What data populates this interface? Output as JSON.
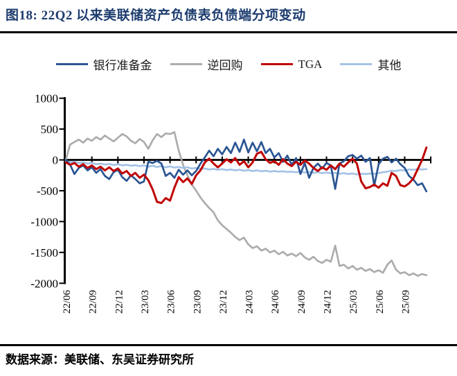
{
  "chart_data": {
    "type": "line",
    "title": "图18:  22Q2 以来美联储资产负债表负债端分项变动",
    "y_ticks": [
      1000,
      500,
      0,
      -500,
      -1000,
      -1500,
      -2000
    ],
    "ylim": [
      -2000,
      1000
    ],
    "x_tick_labels": [
      "22/06",
      "22/09",
      "22/12",
      "23/03",
      "23/06",
      "23/09",
      "23/12",
      "24/03",
      "24/06",
      "24/09",
      "24/12",
      "25/03",
      "25/06",
      "25/09"
    ],
    "x_start": "22/06",
    "samples_per_month": 2,
    "grid": false,
    "legend_position": "top",
    "series": [
      {
        "key": "reserves",
        "name": "银行准备金",
        "color": "#2a5592",
        "values": [
          0,
          -80,
          -230,
          -130,
          -90,
          -170,
          -120,
          -210,
          -150,
          -260,
          -310,
          -200,
          -160,
          -280,
          -340,
          -250,
          -310,
          -380,
          -350,
          -30,
          -50,
          -15,
          -60,
          -260,
          -210,
          -290,
          -160,
          -240,
          -170,
          -250,
          -180,
          -60,
          40,
          150,
          60,
          180,
          90,
          210,
          110,
          280,
          130,
          330,
          120,
          280,
          140,
          290,
          110,
          180,
          40,
          110,
          -30,
          70,
          -80,
          30,
          -230,
          -50,
          -290,
          -130,
          -60,
          -140,
          -50,
          -90,
          -470,
          -60,
          -20,
          60,
          80,
          20,
          70,
          -30,
          30,
          -420,
          -70,
          20,
          50,
          -40,
          20,
          -70,
          -130,
          -260,
          -320,
          -410,
          -380,
          -510
        ]
      },
      {
        "key": "rrp",
        "name": "逆回购",
        "color": "#acacac",
        "values": [
          0,
          250,
          290,
          330,
          280,
          345,
          310,
          370,
          330,
          395,
          345,
          300,
          360,
          420,
          380,
          310,
          270,
          340,
          290,
          180,
          320,
          420,
          370,
          430,
          420,
          450,
          150,
          -80,
          -250,
          -400,
          -500,
          -610,
          -700,
          -780,
          -850,
          -980,
          -1060,
          -1120,
          -1180,
          -1250,
          -1300,
          -1260,
          -1370,
          -1430,
          -1400,
          -1470,
          -1440,
          -1500,
          -1470,
          -1530,
          -1490,
          -1550,
          -1520,
          -1560,
          -1510,
          -1580,
          -1620,
          -1570,
          -1640,
          -1670,
          -1620,
          -1650,
          -1390,
          -1720,
          -1700,
          -1760,
          -1720,
          -1780,
          -1750,
          -1800,
          -1770,
          -1820,
          -1790,
          -1830,
          -1700,
          -1630,
          -1780,
          -1840,
          -1820,
          -1870,
          -1840,
          -1880,
          -1850,
          -1870
        ]
      },
      {
        "key": "tga",
        "name": "TGA",
        "color": "#c00000",
        "values": [
          -40,
          -80,
          -50,
          -110,
          -70,
          -130,
          -90,
          -150,
          -110,
          -170,
          -120,
          -180,
          -140,
          -220,
          -180,
          -260,
          -210,
          -290,
          -240,
          -330,
          -480,
          -680,
          -700,
          -620,
          -660,
          -450,
          -280,
          -360,
          -300,
          -390,
          -250,
          -170,
          -40,
          20,
          -60,
          -120,
          -60,
          10,
          -40,
          30,
          -80,
          -20,
          -120,
          -40,
          100,
          130,
          10,
          -50,
          -20,
          -80,
          10,
          -60,
          -100,
          -30,
          -80,
          -10,
          -60,
          -130,
          -180,
          -120,
          -160,
          -90,
          -150,
          -60,
          -110,
          -40,
          20,
          -60,
          -350,
          -460,
          -440,
          -400,
          -450,
          -380,
          -420,
          -210,
          -260,
          -410,
          -430,
          -380,
          -300,
          -150,
          0,
          200
        ]
      },
      {
        "key": "other",
        "name": "其他",
        "color": "#a4c2e5",
        "values": [
          -20,
          -35,
          -30,
          -50,
          -40,
          -60,
          -50,
          -70,
          -60,
          -75,
          -65,
          -85,
          -70,
          -90,
          -80,
          -95,
          -85,
          -100,
          -90,
          -110,
          -95,
          -115,
          -100,
          -120,
          -105,
          -125,
          -115,
          -130,
          -120,
          -140,
          -130,
          -145,
          -140,
          -155,
          -145,
          -160,
          -150,
          -165,
          -155,
          -170,
          -160,
          -175,
          -165,
          -180,
          -170,
          -185,
          -175,
          -190,
          -180,
          -190,
          -185,
          -195,
          -190,
          -200,
          -190,
          -205,
          -195,
          -210,
          -200,
          -215,
          -205,
          -215,
          -210,
          -225,
          -215,
          -230,
          -220,
          -235,
          -225,
          -230,
          -220,
          -225,
          -215,
          -200,
          -190,
          -175,
          -180,
          -165,
          -170,
          -155,
          -160,
          -150,
          -155,
          -150
        ]
      }
    ]
  },
  "footer": {
    "source": "数据来源：美联储、东吴证券研究所"
  }
}
